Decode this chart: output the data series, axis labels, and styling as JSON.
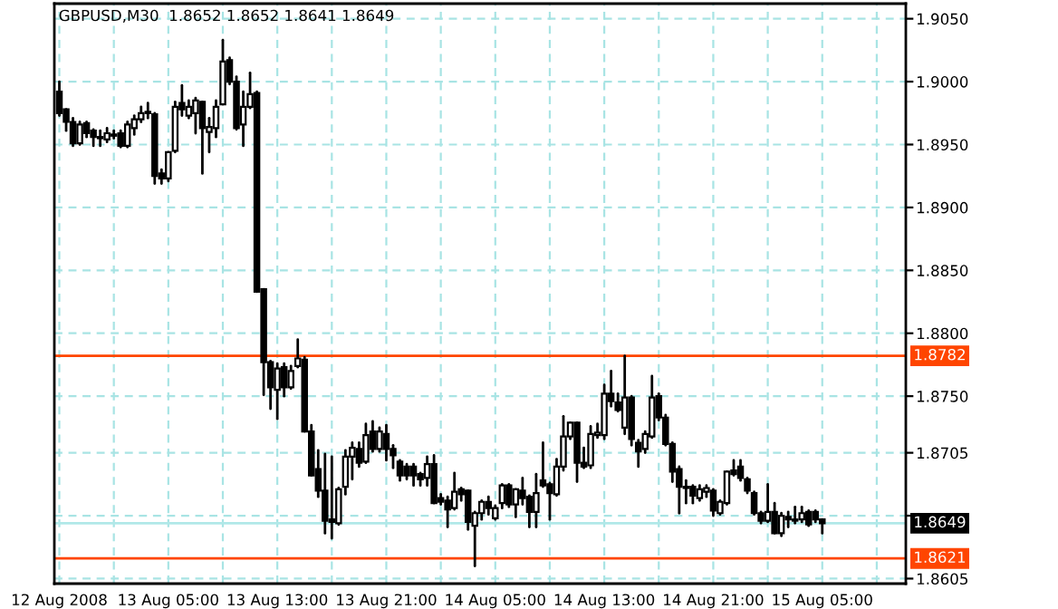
{
  "chart_data": {
    "type": "candlestick",
    "title": "GBPUSD,M30  1.8652 1.8652 1.8641 1.8649",
    "x": [
      "2008-08-12T21:00",
      "2008-08-12T21:30",
      "2008-08-12T22:00",
      "2008-08-12T22:30",
      "2008-08-12T23:00",
      "2008-08-12T23:30",
      "2008-08-13T00:00",
      "2008-08-13T00:30",
      "2008-08-13T01:00",
      "2008-08-13T01:30",
      "2008-08-13T02:00",
      "2008-08-13T02:30",
      "2008-08-13T03:00",
      "2008-08-13T03:30",
      "2008-08-13T04:00",
      "2008-08-13T04:30",
      "2008-08-13T05:00",
      "2008-08-13T05:30",
      "2008-08-13T06:00",
      "2008-08-13T06:30",
      "2008-08-13T07:00",
      "2008-08-13T07:30",
      "2008-08-13T08:00",
      "2008-08-13T08:30",
      "2008-08-13T09:00",
      "2008-08-13T09:30",
      "2008-08-13T10:00",
      "2008-08-13T10:30",
      "2008-08-13T11:00",
      "2008-08-13T11:30",
      "2008-08-13T12:00",
      "2008-08-13T12:30",
      "2008-08-13T13:00",
      "2008-08-13T13:30",
      "2008-08-13T14:00",
      "2008-08-13T14:30",
      "2008-08-13T15:00",
      "2008-08-13T15:30",
      "2008-08-13T16:00",
      "2008-08-13T16:30",
      "2008-08-13T17:00",
      "2008-08-13T17:30",
      "2008-08-13T18:00",
      "2008-08-13T18:30",
      "2008-08-13T19:00",
      "2008-08-13T19:30",
      "2008-08-13T20:00",
      "2008-08-13T20:30",
      "2008-08-13T21:00",
      "2008-08-13T21:30",
      "2008-08-13T22:00",
      "2008-08-13T22:30",
      "2008-08-13T23:00",
      "2008-08-13T23:30",
      "2008-08-14T00:00",
      "2008-08-14T00:30",
      "2008-08-14T01:00",
      "2008-08-14T01:30",
      "2008-08-14T02:00",
      "2008-08-14T02:30",
      "2008-08-14T03:00",
      "2008-08-14T03:30",
      "2008-08-14T04:00",
      "2008-08-14T04:30",
      "2008-08-14T05:00",
      "2008-08-14T05:30",
      "2008-08-14T06:00",
      "2008-08-14T06:30",
      "2008-08-14T07:00",
      "2008-08-14T07:30",
      "2008-08-14T08:00",
      "2008-08-14T08:30",
      "2008-08-14T09:00",
      "2008-08-14T09:30",
      "2008-08-14T10:00",
      "2008-08-14T10:30",
      "2008-08-14T11:00",
      "2008-08-14T11:30",
      "2008-08-14T12:00",
      "2008-08-14T12:30",
      "2008-08-14T13:00",
      "2008-08-14T13:30",
      "2008-08-14T14:00",
      "2008-08-14T14:30",
      "2008-08-14T15:00",
      "2008-08-14T15:30",
      "2008-08-14T16:00",
      "2008-08-14T16:30",
      "2008-08-14T17:00",
      "2008-08-14T17:30",
      "2008-08-14T18:00",
      "2008-08-14T18:30",
      "2008-08-14T19:00",
      "2008-08-14T19:30",
      "2008-08-14T20:00",
      "2008-08-14T20:30",
      "2008-08-14T21:00",
      "2008-08-14T21:30",
      "2008-08-14T22:00",
      "2008-08-14T22:30",
      "2008-08-14T23:00",
      "2008-08-14T23:30",
      "2008-08-15T00:00",
      "2008-08-15T00:30",
      "2008-08-15T01:00",
      "2008-08-15T01:30",
      "2008-08-15T02:00",
      "2008-08-15T02:30",
      "2008-08-15T03:00",
      "2008-08-15T03:30",
      "2008-08-15T04:00",
      "2008-08-15T04:30",
      "2008-08-15T05:00"
    ],
    "xlim": [
      "2008-08-12T20:38",
      "2008-08-15T11:08"
    ],
    "xticks": [
      {
        "value": "2008-08-12T21:00",
        "label": "12 Aug 2008"
      },
      {
        "value": "2008-08-13T01:00",
        "label": null
      },
      {
        "value": "2008-08-13T05:00",
        "label": "13 Aug 05:00"
      },
      {
        "value": "2008-08-13T09:00",
        "label": null
      },
      {
        "value": "2008-08-13T13:00",
        "label": "13 Aug 13:00"
      },
      {
        "value": "2008-08-13T17:00",
        "label": null
      },
      {
        "value": "2008-08-13T21:00",
        "label": "13 Aug 21:00"
      },
      {
        "value": "2008-08-14T01:00",
        "label": null
      },
      {
        "value": "2008-08-14T05:00",
        "label": "14 Aug 05:00"
      },
      {
        "value": "2008-08-14T09:00",
        "label": null
      },
      {
        "value": "2008-08-14T13:00",
        "label": "14 Aug 13:00"
      },
      {
        "value": "2008-08-14T17:00",
        "label": null
      },
      {
        "value": "2008-08-14T21:00",
        "label": "14 Aug 21:00"
      },
      {
        "value": "2008-08-15T01:00",
        "label": null
      },
      {
        "value": "2008-08-15T05:00",
        "label": "15 Aug 05:00"
      },
      {
        "value": "2008-08-15T09:00",
        "label": null
      }
    ],
    "ohlc": [
      [
        1.8992,
        1.9,
        1.8973,
        1.8975
      ],
      [
        1.8978,
        1.8978,
        1.8961,
        1.8968
      ],
      [
        1.8968,
        1.8971,
        1.8949,
        1.8951
      ],
      [
        1.8951,
        1.8968,
        1.895,
        1.8966
      ],
      [
        1.8967,
        1.8968,
        1.8956,
        1.8959
      ],
      [
        1.8961,
        1.8962,
        1.8949,
        1.8956
      ],
      [
        1.8956,
        1.8961,
        1.8949,
        1.8955
      ],
      [
        1.8954,
        1.8963,
        1.8952,
        1.8959
      ],
      [
        1.8958,
        1.8961,
        1.8955,
        1.8957
      ],
      [
        1.8959,
        1.8961,
        1.8948,
        1.8949
      ],
      [
        1.8949,
        1.8968,
        1.8948,
        1.8966
      ],
      [
        1.8963,
        1.8973,
        1.8958,
        1.897
      ],
      [
        1.897,
        1.898,
        1.8968,
        1.8975
      ],
      [
        1.8975,
        1.8983,
        1.8971,
        1.8976
      ],
      [
        1.8974,
        1.8975,
        1.8919,
        1.8925
      ],
      [
        1.8927,
        1.893,
        1.8919,
        1.8923
      ],
      [
        1.8923,
        1.8944,
        1.8921,
        1.8944
      ],
      [
        1.8945,
        1.8984,
        1.8944,
        1.898
      ],
      [
        1.8983,
        1.8997,
        1.8973,
        1.8978
      ],
      [
        1.8973,
        1.8985,
        1.8971,
        1.898
      ],
      [
        1.8975,
        1.8987,
        1.8959,
        1.8985
      ],
      [
        1.8984,
        1.8984,
        1.8927,
        1.8963
      ],
      [
        1.896,
        1.8971,
        1.8944,
        1.8964
      ],
      [
        1.8963,
        1.8985,
        1.8956,
        1.898
      ],
      [
        1.8982,
        1.9033,
        1.8982,
        1.9016
      ],
      [
        1.9017,
        1.9019,
        1.8998,
        1.9
      ],
      [
        1.9,
        1.9004,
        1.8962,
        1.8963
      ],
      [
        1.8966,
        1.8992,
        1.8949,
        1.898
      ],
      [
        1.898,
        1.9007,
        1.8979,
        1.899
      ],
      [
        1.8991,
        1.8992,
        1.8833,
        1.8833
      ],
      [
        1.8835,
        1.8835,
        1.8751,
        1.8777
      ],
      [
        1.8777,
        1.8778,
        1.874,
        1.8757
      ],
      [
        1.8755,
        1.8776,
        1.8732,
        1.8772
      ],
      [
        1.8773,
        1.8776,
        1.875,
        1.8757
      ],
      [
        1.8757,
        1.8774,
        1.8756,
        1.877
      ],
      [
        1.8774,
        1.8795,
        1.8773,
        1.878
      ],
      [
        1.8779,
        1.8781,
        1.8722,
        1.8722
      ],
      [
        1.8722,
        1.8727,
        1.8687,
        1.8687
      ],
      [
        1.8692,
        1.8707,
        1.867,
        1.8675
      ],
      [
        1.8675,
        1.8704,
        1.8641,
        1.8651
      ],
      [
        1.8652,
        1.8702,
        1.8637,
        1.865
      ],
      [
        1.8649,
        1.8677,
        1.8648,
        1.8676
      ],
      [
        1.8678,
        1.8707,
        1.8672,
        1.8702
      ],
      [
        1.8702,
        1.8713,
        1.8684,
        1.8709
      ],
      [
        1.8708,
        1.8713,
        1.8694,
        1.8697
      ],
      [
        1.8698,
        1.8728,
        1.8697,
        1.8719
      ],
      [
        1.8722,
        1.873,
        1.8706,
        1.8708
      ],
      [
        1.8708,
        1.8725,
        1.8706,
        1.8722
      ],
      [
        1.872,
        1.8727,
        1.8699,
        1.8708
      ],
      [
        1.8708,
        1.8711,
        1.8693,
        1.8703
      ],
      [
        1.8698,
        1.8699,
        1.8683,
        1.8687
      ],
      [
        1.8694,
        1.8696,
        1.8684,
        1.8687
      ],
      [
        1.8694,
        1.8696,
        1.8679,
        1.8687
      ],
      [
        1.8688,
        1.8689,
        1.8679,
        1.8684
      ],
      [
        1.8685,
        1.8702,
        1.8679,
        1.8696
      ],
      [
        1.8696,
        1.8703,
        1.8665,
        1.8665
      ],
      [
        1.8669,
        1.8672,
        1.8664,
        1.8666
      ],
      [
        1.8667,
        1.867,
        1.8646,
        1.866
      ],
      [
        1.8661,
        1.8689,
        1.866,
        1.8674
      ],
      [
        1.8676,
        1.8677,
        1.8667,
        1.8672
      ],
      [
        1.8675,
        1.8675,
        1.8644,
        1.865
      ],
      [
        1.8647,
        1.8658,
        1.8615,
        1.8657
      ],
      [
        1.8657,
        1.8667,
        1.8652,
        1.8666
      ],
      [
        1.8666,
        1.867,
        1.8656,
        1.8661
      ],
      [
        1.8653,
        1.8663,
        1.8652,
        1.8661
      ],
      [
        1.8665,
        1.868,
        1.8661,
        1.8679
      ],
      [
        1.8679,
        1.868,
        1.8662,
        1.8664
      ],
      [
        1.8664,
        1.8676,
        1.8654,
        1.8676
      ],
      [
        1.8675,
        1.8685,
        1.8664,
        1.8669
      ],
      [
        1.867,
        1.8671,
        1.8646,
        1.8658
      ],
      [
        1.8658,
        1.8688,
        1.8646,
        1.8673
      ],
      [
        1.8683,
        1.8713,
        1.8678,
        1.8679
      ],
      [
        1.868,
        1.8681,
        1.8652,
        1.8673
      ],
      [
        1.8672,
        1.87,
        1.8671,
        1.8694
      ],
      [
        1.8694,
        1.8734,
        1.8691,
        1.8718
      ],
      [
        1.8718,
        1.8729,
        1.8716,
        1.8729
      ],
      [
        1.8729,
        1.8729,
        1.8682,
        1.8697
      ],
      [
        1.8697,
        1.8709,
        1.8693,
        1.8694
      ],
      [
        1.8695,
        1.8726,
        1.8693,
        1.872
      ],
      [
        1.8719,
        1.8728,
        1.8717,
        1.8721
      ],
      [
        1.8719,
        1.8759,
        1.8716,
        1.8752
      ],
      [
        1.8752,
        1.877,
        1.8742,
        1.8746
      ],
      [
        1.8745,
        1.8752,
        1.8738,
        1.8739
      ],
      [
        1.8725,
        1.8782,
        1.872,
        1.8749
      ],
      [
        1.8749,
        1.875,
        1.8711,
        1.8716
      ],
      [
        1.8713,
        1.8715,
        1.8694,
        1.8706
      ],
      [
        1.8708,
        1.8722,
        1.8705,
        1.872
      ],
      [
        1.8718,
        1.8766,
        1.8717,
        1.8749
      ],
      [
        1.875,
        1.8752,
        1.8731,
        1.8733
      ],
      [
        1.8733,
        1.8735,
        1.8711,
        1.8712
      ],
      [
        1.8712,
        1.8713,
        1.8682,
        1.869
      ],
      [
        1.8692,
        1.8694,
        1.8657,
        1.8678
      ],
      [
        1.8678,
        1.8683,
        1.8665,
        1.8677
      ],
      [
        1.8678,
        1.8679,
        1.8665,
        1.8671
      ],
      [
        1.8669,
        1.8679,
        1.8667,
        1.8676
      ],
      [
        1.8674,
        1.8679,
        1.867,
        1.8677
      ],
      [
        1.8675,
        1.8676,
        1.8655,
        1.8659
      ],
      [
        1.8657,
        1.8667,
        1.8656,
        1.8666
      ],
      [
        1.8665,
        1.869,
        1.8664,
        1.869
      ],
      [
        1.8691,
        1.8699,
        1.8687,
        1.8688
      ],
      [
        1.8694,
        1.8699,
        1.8683,
        1.8685
      ],
      [
        1.8684,
        1.8685,
        1.8673,
        1.8675
      ],
      [
        1.8673,
        1.8674,
        1.8656,
        1.8657
      ],
      [
        1.8657,
        1.8658,
        1.8649,
        1.8651
      ],
      [
        1.8651,
        1.868,
        1.865,
        1.8658
      ],
      [
        1.8658,
        1.8665,
        1.8641,
        1.8641
      ],
      [
        1.8641,
        1.8657,
        1.8639,
        1.8655
      ],
      [
        1.8654,
        1.8658,
        1.8646,
        1.8652
      ],
      [
        1.8652,
        1.8662,
        1.8649,
        1.8651
      ],
      [
        1.8652,
        1.8662,
        1.865,
        1.8657
      ],
      [
        1.8658,
        1.8659,
        1.8647,
        1.8648
      ],
      [
        1.8658,
        1.8659,
        1.865,
        1.8652
      ],
      [
        1.8652,
        1.8652,
        1.8641,
        1.8649
      ]
    ],
    "ylim": [
      1.8601,
      1.9062
    ],
    "yticks": [
      {
        "value": 1.905,
        "label": "1.9050"
      },
      {
        "value": 1.9,
        "label": "1.9000"
      },
      {
        "value": 1.895,
        "label": "1.8950"
      },
      {
        "value": 1.89,
        "label": "1.8900"
      },
      {
        "value": 1.885,
        "label": "1.8850"
      },
      {
        "value": 1.88,
        "label": "1.8800"
      },
      {
        "value": 1.875,
        "label": "1.8750"
      },
      1.8705,
      {
        "value": 1.8655,
        "label": null
      },
      1.8605
    ],
    "ref_lines": [
      {
        "axis": "y",
        "value": 1.8782,
        "label": "1.8782",
        "color": "#ff4500",
        "line_style": "solid"
      },
      {
        "axis": "y",
        "value": 1.8621,
        "label": "1.8621",
        "color": "#ff4500",
        "line_style": "solid"
      },
      {
        "axis": "y",
        "value": 1.8649,
        "label": "1.8649",
        "color": "#b0e8e8",
        "line_style": "solid"
      }
    ],
    "grid": true
  }
}
